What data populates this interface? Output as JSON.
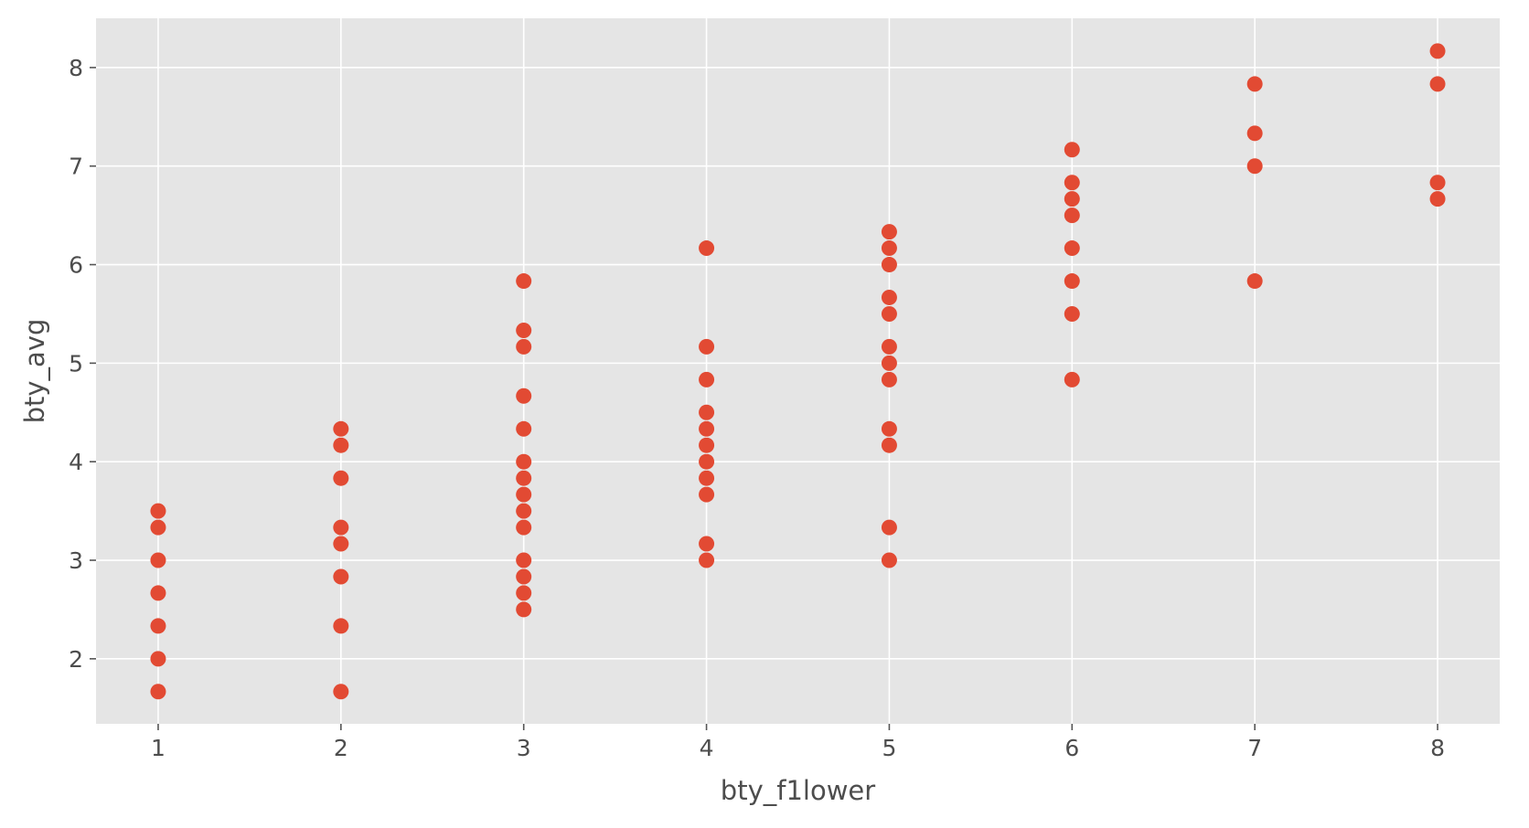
{
  "chart_data": {
    "type": "scatter",
    "xlabel": "bty_f1lower",
    "ylabel": "bty_avg",
    "xlim": [
      0.66,
      8.34
    ],
    "ylim": [
      1.34,
      8.5
    ],
    "xticks": [
      1,
      2,
      3,
      4,
      5,
      6,
      7,
      8
    ],
    "yticks": [
      2,
      3,
      4,
      5,
      6,
      7,
      8
    ],
    "grid": true,
    "colors": {
      "background": "#e5e5e5",
      "grid": "#ffffff",
      "point": "#e24a33",
      "text": "#4d4d4d"
    },
    "points": [
      [
        1,
        1.667
      ],
      [
        1,
        2.0
      ],
      [
        1,
        2.333
      ],
      [
        1,
        2.667
      ],
      [
        1,
        3.0
      ],
      [
        1,
        3.333
      ],
      [
        1,
        3.5
      ],
      [
        2,
        1.667
      ],
      [
        2,
        2.333
      ],
      [
        2,
        2.833
      ],
      [
        2,
        3.167
      ],
      [
        2,
        3.333
      ],
      [
        2,
        3.833
      ],
      [
        2,
        4.167
      ],
      [
        2,
        4.333
      ],
      [
        3,
        2.5
      ],
      [
        3,
        2.667
      ],
      [
        3,
        2.833
      ],
      [
        3,
        3.0
      ],
      [
        3,
        3.333
      ],
      [
        3,
        3.5
      ],
      [
        3,
        3.667
      ],
      [
        3,
        3.833
      ],
      [
        3,
        4.0
      ],
      [
        3,
        4.333
      ],
      [
        3,
        4.667
      ],
      [
        3,
        5.167
      ],
      [
        3,
        5.333
      ],
      [
        3,
        5.833
      ],
      [
        4,
        3.0
      ],
      [
        4,
        3.167
      ],
      [
        4,
        3.667
      ],
      [
        4,
        3.833
      ],
      [
        4,
        4.0
      ],
      [
        4,
        4.167
      ],
      [
        4,
        4.333
      ],
      [
        4,
        4.5
      ],
      [
        4,
        4.833
      ],
      [
        4,
        5.167
      ],
      [
        4,
        6.167
      ],
      [
        5,
        3.0
      ],
      [
        5,
        3.333
      ],
      [
        5,
        4.167
      ],
      [
        5,
        4.333
      ],
      [
        5,
        4.833
      ],
      [
        5,
        5.0
      ],
      [
        5,
        5.167
      ],
      [
        5,
        5.5
      ],
      [
        5,
        5.667
      ],
      [
        5,
        6.0
      ],
      [
        5,
        6.167
      ],
      [
        5,
        6.333
      ],
      [
        6,
        4.833
      ],
      [
        6,
        5.5
      ],
      [
        6,
        5.833
      ],
      [
        6,
        6.167
      ],
      [
        6,
        6.5
      ],
      [
        6,
        6.667
      ],
      [
        6,
        6.833
      ],
      [
        6,
        7.167
      ],
      [
        7,
        5.833
      ],
      [
        7,
        7.0
      ],
      [
        7,
        7.333
      ],
      [
        7,
        7.833
      ],
      [
        8,
        6.667
      ],
      [
        8,
        6.833
      ],
      [
        8,
        7.833
      ],
      [
        8,
        8.167
      ]
    ]
  }
}
